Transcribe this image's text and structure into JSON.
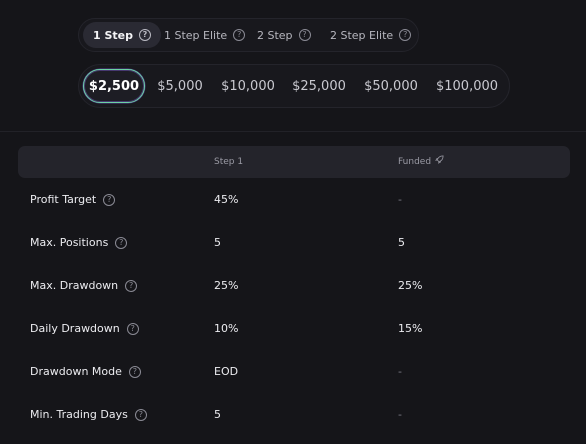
{
  "step_tabs": [
    {
      "label": "1 Step",
      "active": true
    },
    {
      "label": "1 Step Elite",
      "active": false
    },
    {
      "label": "2 Step",
      "active": false
    },
    {
      "label": "2 Step Elite",
      "active": false
    }
  ],
  "account_sizes": [
    {
      "label": "$2,500",
      "active": true
    },
    {
      "label": "$5,000",
      "active": false
    },
    {
      "label": "$10,000",
      "active": false
    },
    {
      "label": "$25,000",
      "active": false
    },
    {
      "label": "$50,000",
      "active": false
    },
    {
      "label": "$100,000",
      "active": false
    }
  ],
  "table": {
    "headers": [
      "Step 1",
      "Funded"
    ],
    "funded_icon": "rocket-icon",
    "rows": [
      {
        "label": "Profit Target",
        "step1": "45%",
        "funded": "-"
      },
      {
        "label": "Max. Positions",
        "step1": "5",
        "funded": "5"
      },
      {
        "label": "Max. Drawdown",
        "step1": "25%",
        "funded": "25%"
      },
      {
        "label": "Daily Drawdown",
        "step1": "10%",
        "funded": "15%"
      },
      {
        "label": "Drawdown Mode",
        "step1": "EOD",
        "funded": "-"
      },
      {
        "label": "Min. Trading Days",
        "step1": "5",
        "funded": "-"
      }
    ]
  },
  "colors": {
    "background": "#151519",
    "header_bg": "#24242b",
    "active_border": "#6bd3a3"
  }
}
